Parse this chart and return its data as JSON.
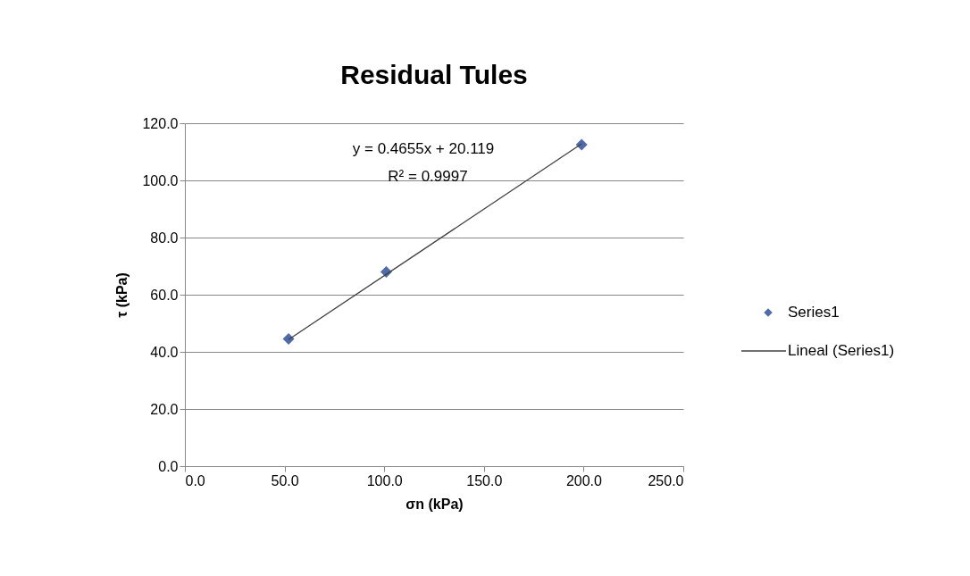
{
  "chart_data": {
    "type": "scatter",
    "title": "Residual Tules",
    "xlabel": "σn (kPa)",
    "ylabel": "τ (kPa)",
    "series": [
      {
        "name": "Series1",
        "color": "#4f6ba8",
        "marker": "diamond",
        "x": [
          52,
          101,
          199
        ],
        "values": [
          44.5,
          68,
          112.5
        ]
      },
      {
        "name": "Lineal (Series1)",
        "type": "line",
        "color": "#404040",
        "marker": "none",
        "x": [
          52,
          199
        ],
        "values": [
          44.3,
          112.8
        ]
      }
    ],
    "annotations": [
      "y = 0.4655x + 20.119",
      "R² = 0.9997"
    ],
    "xlim": [
      0,
      250
    ],
    "xticks": [
      {
        "value": 0,
        "label": "0.0"
      },
      {
        "value": 50,
        "label": "50.0"
      },
      {
        "value": 100,
        "label": "100.0"
      },
      {
        "value": 150,
        "label": "150.0"
      },
      {
        "value": 200,
        "label": "200.0"
      },
      {
        "value": 250,
        "label": "250.0"
      }
    ],
    "ylim": [
      0,
      120
    ],
    "yticks": [
      {
        "value": 0,
        "label": "0.0"
      },
      {
        "value": 20,
        "label": "20.0"
      },
      {
        "value": 40,
        "label": "40.0"
      },
      {
        "value": 60,
        "label": "60.0"
      },
      {
        "value": 80,
        "label": "80.0"
      },
      {
        "value": 100,
        "label": "100.0"
      },
      {
        "value": 120,
        "label": "120.0"
      }
    ],
    "grid": "y",
    "legend": "right"
  }
}
